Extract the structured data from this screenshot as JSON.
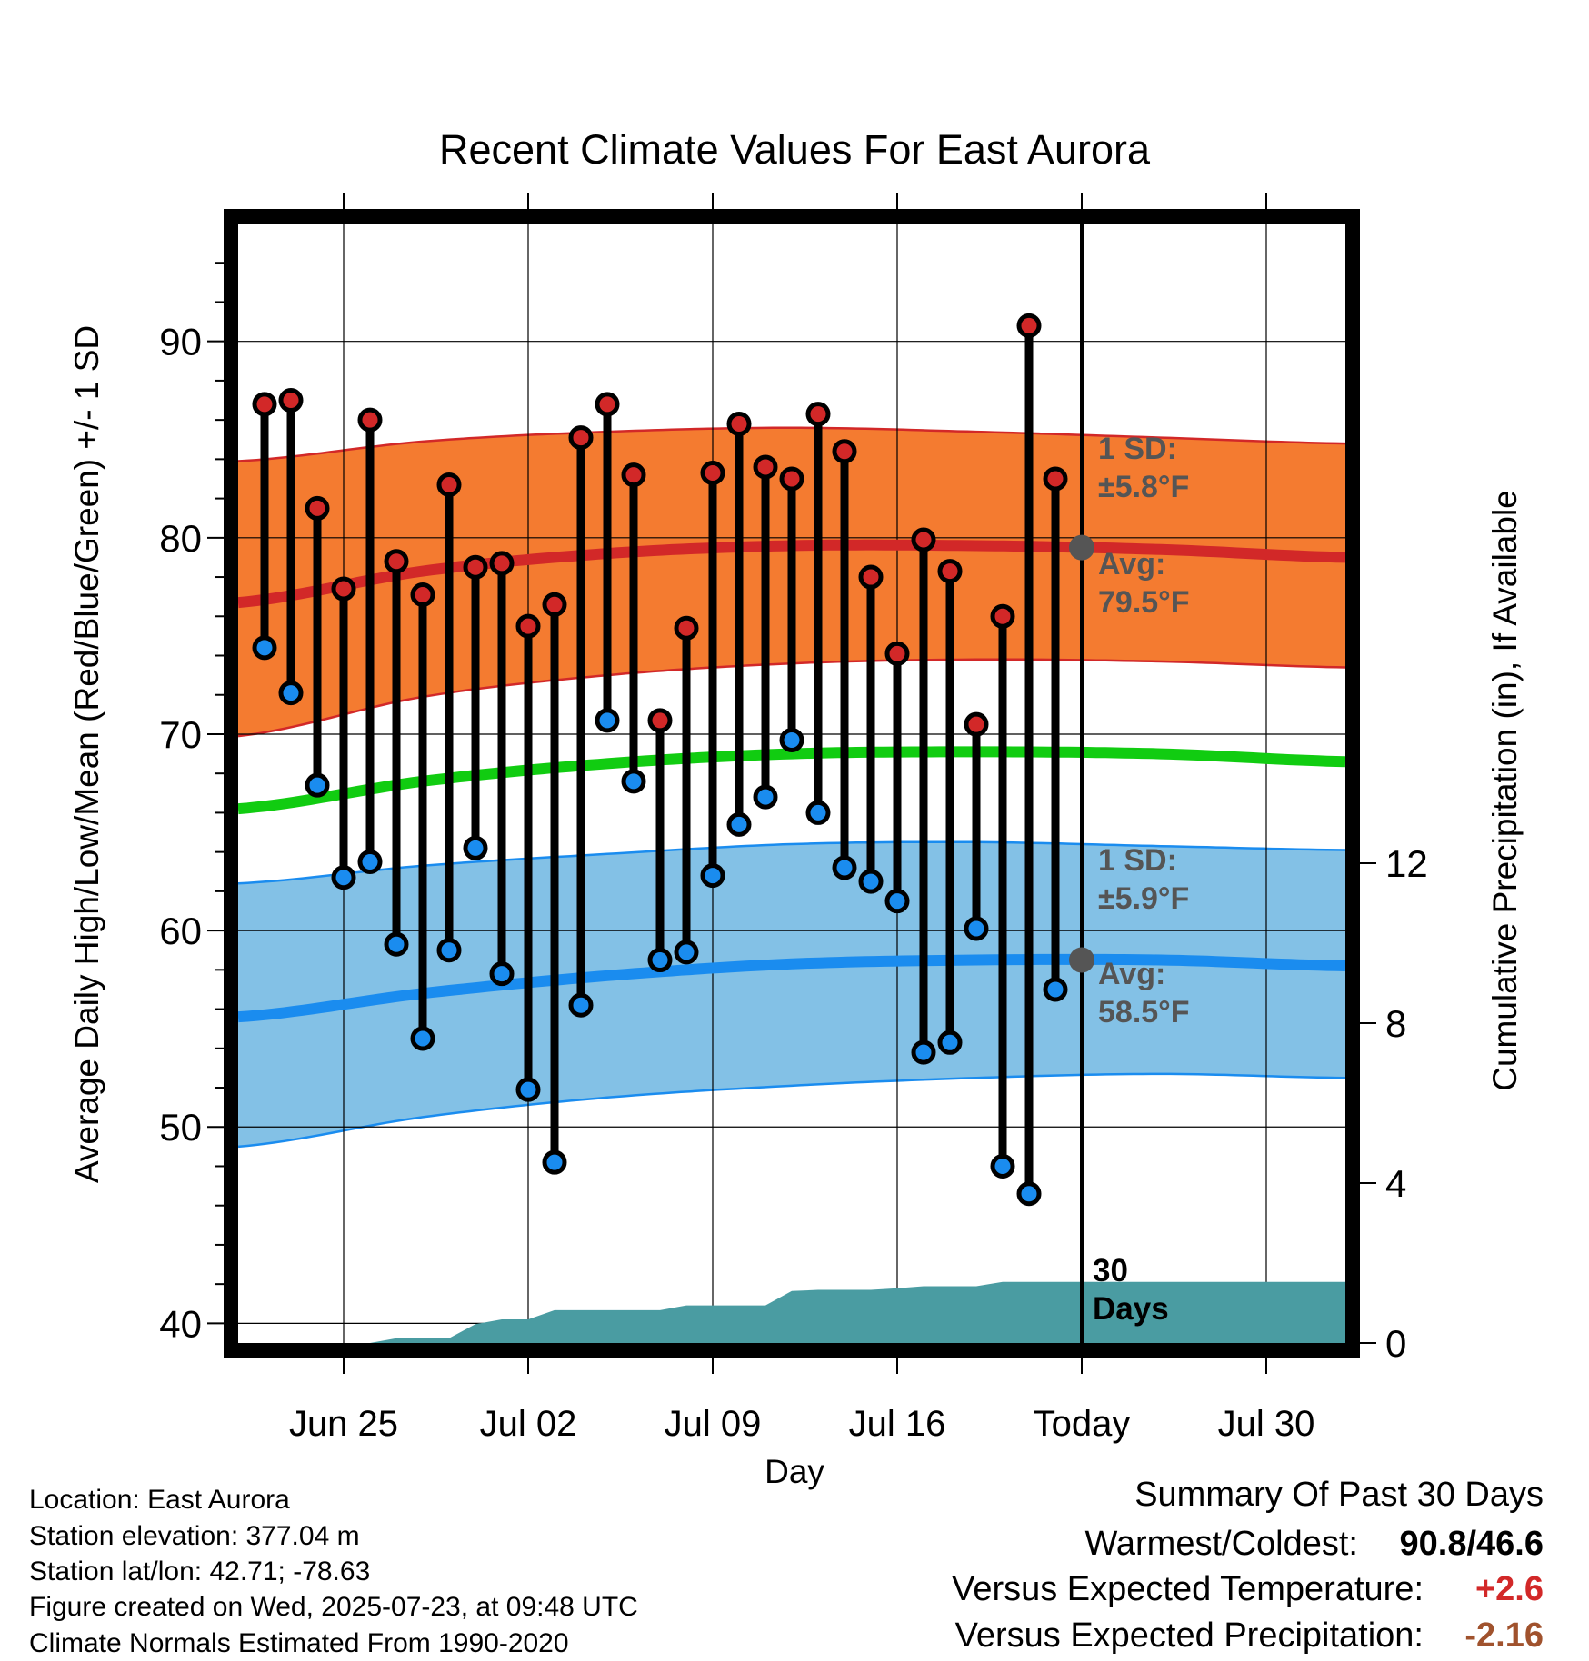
{
  "chart_data": {
    "type": "line",
    "title": "Recent Climate Values For East Aurora",
    "xlabel": "Day",
    "ylabel": "Average Daily High/Low/Mean (Red/Blue/Green) +/- 1 SD",
    "y2label": "Cumulative Precipitation (in), If Available",
    "ylim": [
      39,
      96
    ],
    "y2lim": [
      0,
      28
    ],
    "yticks": [
      "40",
      "50",
      "60",
      "70",
      "80",
      "90"
    ],
    "y2ticks": [
      "0",
      "4",
      "8",
      "12"
    ],
    "xlim": [
      "2025-06-21",
      "2025-08-02"
    ],
    "xticks": [
      {
        "date": "2025-06-25",
        "label": "Jun 25"
      },
      {
        "date": "2025-07-02",
        "label": "Jul 02"
      },
      {
        "date": "2025-07-09",
        "label": "Jul 09"
      },
      {
        "date": "2025-07-16",
        "label": "Jul 16"
      },
      {
        "date": "2025-07-23",
        "label": "Today"
      },
      {
        "date": "2025-07-30",
        "label": "Jul 30"
      }
    ],
    "grid": true,
    "today": "2025-07-23",
    "normals": {
      "dates": [
        "2025-06-21",
        "2025-06-28",
        "2025-07-05",
        "2025-07-12",
        "2025-07-19",
        "2025-07-26",
        "2025-08-02"
      ],
      "high_mean": [
        76.7,
        78.3,
        79.2,
        79.6,
        79.6,
        79.4,
        79.0
      ],
      "high_upper": [
        83.9,
        84.9,
        85.4,
        85.6,
        85.4,
        85.1,
        84.8
      ],
      "high_lower": [
        69.9,
        71.9,
        73.0,
        73.6,
        73.8,
        73.7,
        73.4
      ],
      "low_mean": [
        55.6,
        56.8,
        57.7,
        58.3,
        58.5,
        58.5,
        58.2
      ],
      "low_upper": [
        62.4,
        63.3,
        63.9,
        64.4,
        64.5,
        64.3,
        64.1
      ],
      "low_lower": [
        49.0,
        50.5,
        51.5,
        52.1,
        52.5,
        52.7,
        52.5
      ],
      "mean": [
        66.2,
        67.6,
        68.5,
        69.0,
        69.1,
        69.0,
        68.6
      ]
    },
    "observations": {
      "dates": [
        "2025-06-22",
        "2025-06-23",
        "2025-06-24",
        "2025-06-25",
        "2025-06-26",
        "2025-06-27",
        "2025-06-28",
        "2025-06-29",
        "2025-06-30",
        "2025-07-01",
        "2025-07-02",
        "2025-07-03",
        "2025-07-04",
        "2025-07-05",
        "2025-07-06",
        "2025-07-07",
        "2025-07-08",
        "2025-07-09",
        "2025-07-10",
        "2025-07-11",
        "2025-07-12",
        "2025-07-13",
        "2025-07-14",
        "2025-07-15",
        "2025-07-16",
        "2025-07-17",
        "2025-07-18",
        "2025-07-19",
        "2025-07-20",
        "2025-07-21",
        "2025-07-22"
      ],
      "high": [
        86.8,
        87.0,
        81.5,
        77.4,
        86.0,
        78.8,
        77.1,
        82.7,
        78.5,
        78.7,
        75.5,
        76.6,
        85.1,
        86.8,
        83.2,
        70.7,
        75.4,
        83.3,
        85.8,
        83.6,
        83.0,
        86.3,
        84.4,
        78.0,
        74.1,
        79.9,
        78.3,
        70.5,
        76.0,
        90.8,
        83.0
      ],
      "low": [
        74.4,
        72.1,
        67.4,
        62.7,
        63.5,
        59.3,
        54.5,
        59.0,
        64.2,
        57.8,
        51.9,
        48.2,
        56.2,
        70.7,
        67.6,
        58.5,
        58.9,
        62.8,
        65.4,
        66.8,
        69.7,
        66.0,
        63.2,
        62.5,
        61.5,
        53.8,
        54.3,
        60.1,
        48.0,
        46.6,
        57.0
      ]
    },
    "precip_cumulative": {
      "dates": [
        "2025-06-22",
        "2025-06-23",
        "2025-06-24",
        "2025-06-25",
        "2025-06-26",
        "2025-06-27",
        "2025-06-28",
        "2025-06-29",
        "2025-06-30",
        "2025-07-01",
        "2025-07-02",
        "2025-07-03",
        "2025-07-04",
        "2025-07-05",
        "2025-07-06",
        "2025-07-07",
        "2025-07-08",
        "2025-07-09",
        "2025-07-10",
        "2025-07-11",
        "2025-07-12",
        "2025-07-13",
        "2025-07-14",
        "2025-07-15",
        "2025-07-16",
        "2025-07-17",
        "2025-07-18",
        "2025-07-19",
        "2025-07-20",
        "2025-07-21",
        "2025-07-22",
        "2025-07-23",
        "2025-08-02"
      ],
      "values": [
        0.0,
        0.0,
        0.0,
        0.0,
        0.0,
        0.12,
        0.12,
        0.12,
        0.47,
        0.59,
        0.59,
        0.82,
        0.82,
        0.82,
        0.82,
        0.82,
        0.94,
        0.94,
        0.94,
        0.94,
        1.3,
        1.33,
        1.33,
        1.33,
        1.37,
        1.42,
        1.42,
        1.42,
        1.53,
        1.53,
        1.53,
        1.53,
        1.53
      ]
    },
    "annotations": {
      "high_sd_title": "1 SD:",
      "high_sd_value": "±5.8°F",
      "high_avg_title": "Avg:",
      "high_avg_value": "79.5°F",
      "high_avg": 79.5,
      "low_sd_title": "1 SD:",
      "low_sd_value": "±5.9°F",
      "low_avg_title": "Avg:",
      "low_avg_value": "58.5°F",
      "low_avg": 58.5,
      "precip_label_1": "30",
      "precip_label_2": "Days"
    },
    "colors": {
      "high_band": "#f47b30",
      "high_line": "#d22828",
      "low_band": "#83c1e6",
      "low_line": "#1a8cef",
      "mean_line": "#11cc11",
      "precip": "#4a9ca2",
      "high_dot": "#d22828",
      "low_dot": "#1a8cef",
      "avg_marker": "#555555",
      "annotation_text": "#555555"
    }
  },
  "footer": {
    "location": "Location: East Aurora",
    "elevation": "Station elevation: 377.04 m",
    "latlon": "Station lat/lon: 42.71; -78.63",
    "created": "Figure created on Wed, 2025-07-23, at 09:48 UTC",
    "normals": "Climate Normals Estimated From 1990-2020"
  },
  "summary": {
    "title": "Summary Of Past 30 Days",
    "warmest_label": "Warmest/Coldest:",
    "warmest_value": "90.8/46.6",
    "temp_label": "Versus Expected Temperature:",
    "temp_value": "+2.6",
    "temp_color": "#d22828",
    "precip_label": "Versus Expected Precipitation:",
    "precip_value": "-2.16",
    "precip_color": "#a0522d"
  }
}
